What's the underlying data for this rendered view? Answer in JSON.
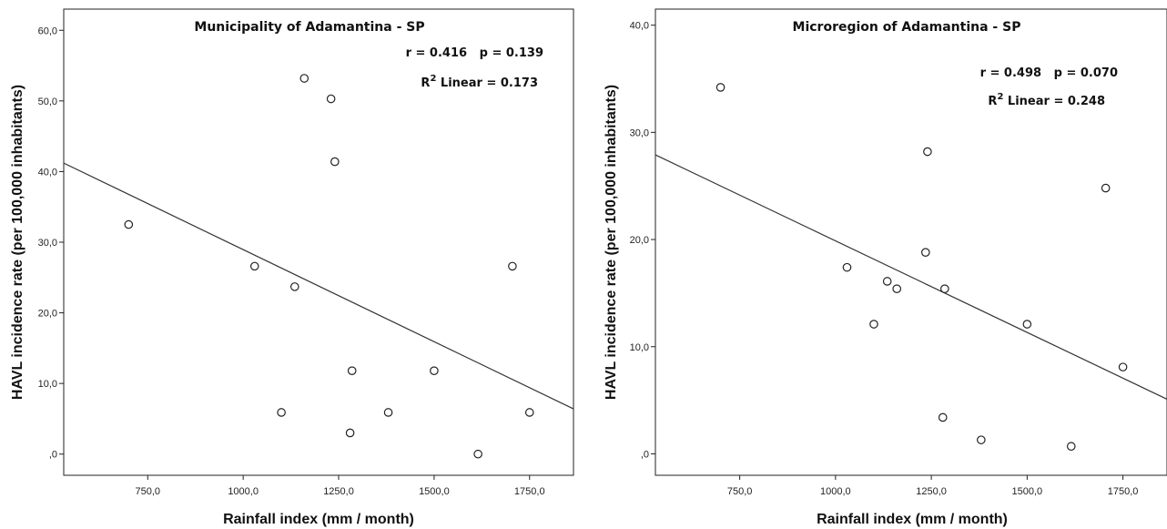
{
  "chart_data": [
    {
      "type": "scatter",
      "title": "Municipality of Adamantina - SP",
      "stat_line1": "r = 0.416   p = 0.139",
      "stat_line2_prefix": "R",
      "stat_line2_sup": "2",
      "stat_line2_suffix": " Linear = 0.173",
      "xlabel": "Rainfall index (mm / month)",
      "ylabel": "HAVL incidence rate (per 100,000 inhabitants)",
      "xlim": [
        530,
        1865
      ],
      "ylim": [
        -3,
        63
      ],
      "x_ticks": [
        750,
        1000,
        1250,
        1500,
        1750
      ],
      "x_tick_labels": [
        "750,0",
        "1000,0",
        "1250,0",
        "1500,0",
        "1750,0"
      ],
      "y_ticks": [
        0,
        10,
        20,
        30,
        40,
        50,
        60
      ],
      "y_tick_labels": [
        ",0",
        "10,0",
        "20,0",
        "30,0",
        "40,0",
        "50,0",
        "60,0"
      ],
      "points": [
        {
          "x": 700,
          "y": 32.5
        },
        {
          "x": 1030,
          "y": 26.6
        },
        {
          "x": 1100,
          "y": 5.9
        },
        {
          "x": 1135,
          "y": 23.7
        },
        {
          "x": 1160,
          "y": 53.2
        },
        {
          "x": 1230,
          "y": 50.3
        },
        {
          "x": 1240,
          "y": 41.4
        },
        {
          "x": 1280,
          "y": 3.0
        },
        {
          "x": 1285,
          "y": 11.8
        },
        {
          "x": 1380,
          "y": 5.9
        },
        {
          "x": 1500,
          "y": 11.8
        },
        {
          "x": 1615,
          "y": 0.0
        },
        {
          "x": 1705,
          "y": 26.6
        },
        {
          "x": 1750,
          "y": 5.9
        }
      ],
      "fit_line": {
        "x": [
          530,
          1865
        ],
        "y": [
          41.2,
          6.4
        ]
      }
    },
    {
      "type": "scatter",
      "title": "Microregion of Adamantina - SP",
      "stat_line1": "r = 0.498   p = 0.070",
      "stat_line2_prefix": "R",
      "stat_line2_sup": "2",
      "stat_line2_suffix": " Linear = 0.248",
      "xlabel": "Rainfall index (mm / month)",
      "ylabel": "HAVL incidence rate (per 100,000 inhabitants)",
      "xlim": [
        530,
        1865
      ],
      "ylim": [
        -2,
        41.5
      ],
      "x_ticks": [
        750,
        1000,
        1250,
        1500,
        1750
      ],
      "x_tick_labels": [
        "750,0",
        "1000,0",
        "1250,0",
        "1500,0",
        "1750,0"
      ],
      "y_ticks": [
        0,
        10,
        20,
        30,
        40
      ],
      "y_tick_labels": [
        ",0",
        "10,0",
        "20,0",
        "30,0",
        "40,0"
      ],
      "points": [
        {
          "x": 700,
          "y": 34.2
        },
        {
          "x": 1030,
          "y": 17.4
        },
        {
          "x": 1100,
          "y": 12.1
        },
        {
          "x": 1135,
          "y": 16.1
        },
        {
          "x": 1160,
          "y": 15.4
        },
        {
          "x": 1235,
          "y": 18.8
        },
        {
          "x": 1240,
          "y": 28.2
        },
        {
          "x": 1280,
          "y": 3.4
        },
        {
          "x": 1285,
          "y": 15.4
        },
        {
          "x": 1380,
          "y": 1.3
        },
        {
          "x": 1500,
          "y": 12.1
        },
        {
          "x": 1615,
          "y": 0.7
        },
        {
          "x": 1705,
          "y": 24.8
        },
        {
          "x": 1750,
          "y": 8.1
        }
      ],
      "fit_line": {
        "x": [
          530,
          1865
        ],
        "y": [
          27.9,
          5.1
        ]
      }
    }
  ]
}
